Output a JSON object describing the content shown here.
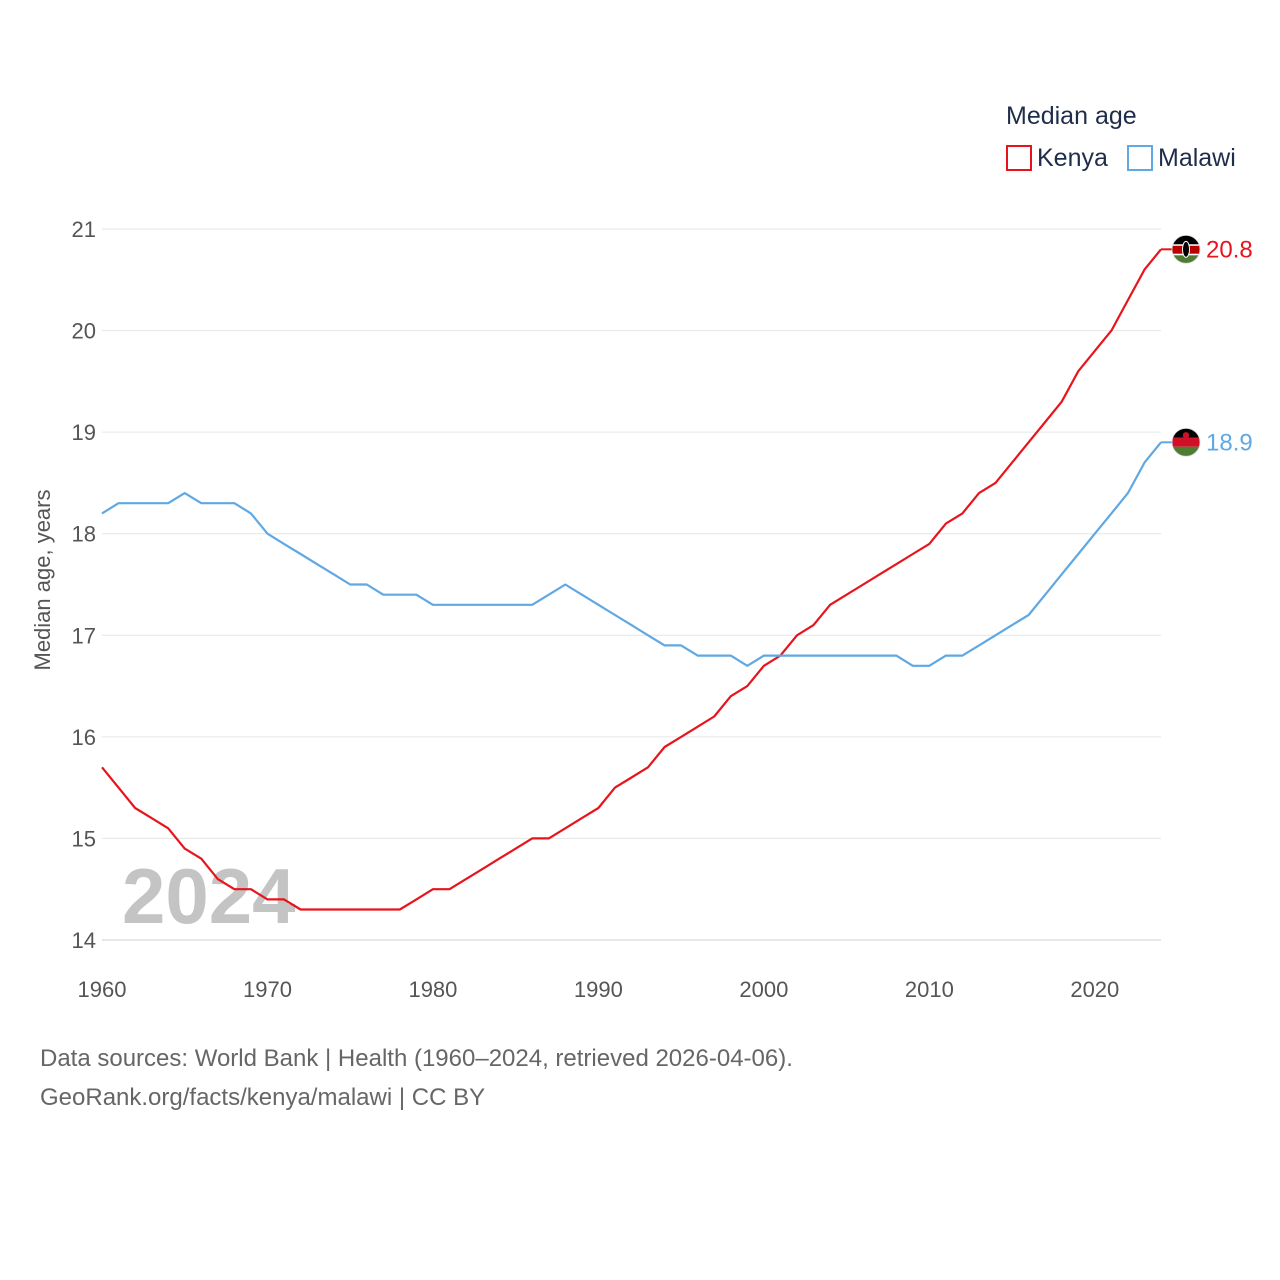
{
  "chart_data": {
    "type": "line",
    "ylabel": "Median age, years",
    "legend_title": "Median age",
    "legend_position": "top-right",
    "xlim": [
      1960,
      2024
    ],
    "ylim": [
      14,
      21
    ],
    "x_ticks": [
      1960,
      1970,
      1980,
      1990,
      2000,
      2010,
      2020
    ],
    "y_ticks": [
      14,
      15,
      16,
      17,
      18,
      19,
      20,
      21
    ],
    "grid": true,
    "highlight_year": "2024",
    "x": [
      1960,
      1961,
      1962,
      1963,
      1964,
      1965,
      1966,
      1967,
      1968,
      1969,
      1970,
      1971,
      1972,
      1973,
      1974,
      1975,
      1976,
      1977,
      1978,
      1979,
      1980,
      1981,
      1982,
      1983,
      1984,
      1985,
      1986,
      1987,
      1988,
      1989,
      1990,
      1991,
      1992,
      1993,
      1994,
      1995,
      1996,
      1997,
      1998,
      1999,
      2000,
      2001,
      2002,
      2003,
      2004,
      2005,
      2006,
      2007,
      2008,
      2009,
      2010,
      2011,
      2012,
      2013,
      2014,
      2015,
      2016,
      2017,
      2018,
      2019,
      2020,
      2021,
      2022,
      2023,
      2024
    ],
    "series": [
      {
        "name": "Kenya",
        "color": "#e8141c",
        "end_label": "20.8",
        "flag": "kenya-flag-icon",
        "values": [
          15.7,
          15.5,
          15.3,
          15.2,
          15.1,
          14.9,
          14.8,
          14.6,
          14.5,
          14.5,
          14.4,
          14.4,
          14.3,
          14.3,
          14.3,
          14.3,
          14.3,
          14.3,
          14.3,
          14.4,
          14.5,
          14.5,
          14.6,
          14.7,
          14.8,
          14.9,
          15.0,
          15.0,
          15.1,
          15.2,
          15.3,
          15.5,
          15.6,
          15.7,
          15.9,
          16.0,
          16.1,
          16.2,
          16.4,
          16.5,
          16.7,
          16.8,
          17.0,
          17.1,
          17.3,
          17.4,
          17.5,
          17.6,
          17.7,
          17.8,
          17.9,
          18.1,
          18.2,
          18.4,
          18.5,
          18.7,
          18.9,
          19.1,
          19.3,
          19.6,
          19.8,
          20.0,
          20.3,
          20.6,
          20.8
        ]
      },
      {
        "name": "Malawi",
        "color": "#5fa8e4",
        "end_label": "18.9",
        "flag": "malawi-flag-icon",
        "values": [
          18.2,
          18.3,
          18.3,
          18.3,
          18.3,
          18.4,
          18.3,
          18.3,
          18.3,
          18.2,
          18.0,
          17.9,
          17.8,
          17.7,
          17.6,
          17.5,
          17.5,
          17.4,
          17.4,
          17.4,
          17.3,
          17.3,
          17.3,
          17.3,
          17.3,
          17.3,
          17.3,
          17.4,
          17.5,
          17.4,
          17.3,
          17.2,
          17.1,
          17.0,
          16.9,
          16.9,
          16.8,
          16.8,
          16.8,
          16.7,
          16.8,
          16.8,
          16.8,
          16.8,
          16.8,
          16.8,
          16.8,
          16.8,
          16.8,
          16.7,
          16.7,
          16.8,
          16.8,
          16.9,
          17.0,
          17.1,
          17.2,
          17.4,
          17.6,
          17.8,
          18.0,
          18.2,
          18.4,
          18.7,
          18.9
        ]
      }
    ]
  },
  "footer": {
    "sources": "Data sources: World Bank | Health (1960–2024, retrieved 2026-04-06).",
    "credit": "GeoRank.org/facts/kenya/malawi | CC BY"
  }
}
